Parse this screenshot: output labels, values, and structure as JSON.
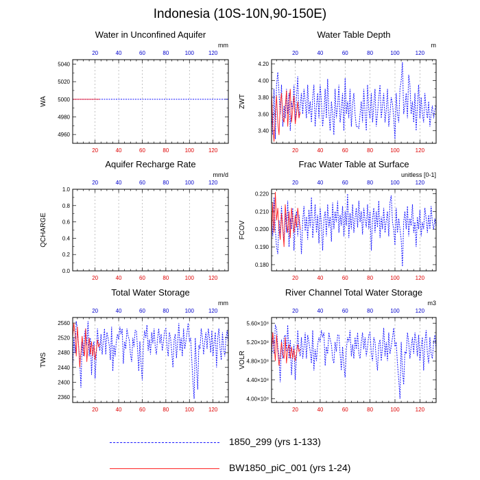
{
  "figure": {
    "title": "Indonesia (10S-10N,90-150E)",
    "colors": {
      "series_1850_299": "#1010ff",
      "series_BW1850": "#ff2020",
      "top_ticks": "#0000cc",
      "bottom_ticks": "#dd0000"
    },
    "legend": [
      {
        "label": "1850_299 (yrs 1-133)",
        "style": "dashed",
        "color": "#1010ff"
      },
      {
        "label": "BW1850_piC_001 (yrs 1-24)",
        "style": "solid",
        "color": "#ff2020"
      }
    ]
  },
  "chart_data": [
    {
      "type": "line",
      "title": "Water in Unconfined Aquifer",
      "units": "mm",
      "ylabel": "WA",
      "xlim": [
        1,
        133
      ],
      "ylim": [
        4950,
        5045
      ],
      "yticks": [
        4960,
        4980,
        5000,
        5020,
        5040
      ],
      "ytick_labels": [
        "4960",
        "4980",
        "5000",
        "5020",
        "5040"
      ],
      "xticks": [
        20,
        40,
        60,
        80,
        100,
        120
      ],
      "xtick_labels": [
        "20",
        "40",
        "60",
        "80",
        "100",
        "120"
      ],
      "series": [
        {
          "name": "1850_299",
          "x_start": 1,
          "values": [
            5000,
            5000
          ],
          "x_end": 133
        },
        {
          "name": "BW1850_piC_001",
          "x_start": 1,
          "values": [
            5000,
            5000
          ],
          "x_end": 24
        }
      ]
    },
    {
      "type": "line",
      "title": "Water Table Depth",
      "units": "m",
      "ylabel": "ZWT",
      "xlim": [
        1,
        133
      ],
      "ylim": [
        3.25,
        4.25
      ],
      "yticks": [
        3.4,
        3.6,
        3.8,
        4.0,
        4.2
      ],
      "ytick_labels": [
        "3.40",
        "3.60",
        "3.80",
        "4.00",
        "4.20"
      ],
      "xticks": [
        20,
        40,
        60,
        80,
        100,
        120
      ],
      "xtick_labels": [
        "20",
        "40",
        "60",
        "80",
        "100",
        "120"
      ],
      "series": [
        {
          "name": "1850_299",
          "x_start": 1,
          "values": [
            3.72,
            3.35,
            3.9,
            3.3,
            3.95,
            4.1,
            3.85,
            3.6,
            3.95,
            3.45,
            3.7,
            3.55,
            3.9,
            3.6,
            3.85,
            3.4,
            3.75,
            3.65,
            3.95,
            3.5,
            3.8,
            4.05,
            3.55,
            3.7,
            3.85,
            3.6,
            3.9,
            3.75,
            3.55,
            3.95,
            3.6,
            3.75,
            3.5,
            3.8,
            3.95,
            3.45,
            3.7,
            3.85,
            3.55,
            3.95,
            3.75,
            3.45,
            3.62,
            3.9,
            3.55,
            4.02,
            3.62,
            3.4,
            3.75,
            3.6,
            3.35,
            3.9,
            3.55,
            3.7,
            3.95,
            3.5,
            3.65,
            3.85,
            3.4,
            4.03,
            3.6,
            3.75,
            3.55,
            3.9,
            3.45,
            3.72,
            3.85,
            3.6,
            3.45,
            3.45,
            3.43,
            3.6,
            3.75,
            3.5,
            3.9,
            3.6,
            3.4,
            3.95,
            3.65,
            3.55,
            3.85,
            3.5,
            3.7,
            3.9,
            3.45,
            3.6,
            3.8,
            3.95,
            3.55,
            3.7,
            3.85,
            3.5,
            3.65,
            3.9,
            3.45,
            3.6,
            3.8,
            3.72,
            3.55,
            3.3,
            3.85,
            3.6,
            3.5,
            3.9,
            4.0,
            4.22,
            3.6,
            3.7,
            3.85,
            3.55,
            4.07,
            3.95,
            3.6,
            3.75,
            3.5,
            3.85,
            3.4,
            3.7,
            3.95,
            3.55,
            3.8,
            3.6,
            3.5,
            3.85,
            3.65,
            3.55,
            3.75,
            3.45,
            3.6,
            3.7,
            3.55,
            3.65,
            3.7
          ]
        },
        {
          "name": "BW1850_piC_001",
          "x_start": 1,
          "values": [
            3.88,
            3.45,
            3.27,
            3.6,
            3.82,
            3.5,
            3.35,
            3.72,
            3.85,
            3.55,
            3.5,
            3.7,
            3.88,
            3.45,
            3.72,
            3.9,
            3.5,
            3.65,
            3.82,
            3.48,
            3.6,
            3.75,
            3.55,
            3.62
          ]
        }
      ]
    },
    {
      "type": "line",
      "title": "Aquifer Recharge Rate",
      "units": "mm/d",
      "ylabel": "QCHARGE",
      "xlim": [
        1,
        133
      ],
      "ylim": [
        0.0,
        1.0
      ],
      "yticks": [
        0.0,
        0.2,
        0.4,
        0.6,
        0.8,
        1.0
      ],
      "ytick_labels": [
        "0.0",
        "0.2",
        "0.4",
        "0.6",
        "0.8",
        "1.0"
      ],
      "xticks": [
        20,
        40,
        60,
        80,
        100,
        120
      ],
      "xtick_labels": [
        "20",
        "40",
        "60",
        "80",
        "100",
        "120"
      ],
      "series": []
    },
    {
      "type": "line",
      "title": "Frac Water Table at Surface",
      "units": "unitless [0-1]",
      "ylabel": "FCOV",
      "xlim": [
        1,
        133
      ],
      "ylim": [
        0.1765,
        0.2225
      ],
      "yticks": [
        0.18,
        0.19,
        0.2,
        0.21,
        0.22
      ],
      "ytick_labels": [
        "0.180",
        "0.190",
        "0.200",
        "0.210",
        "0.220"
      ],
      "xticks": [
        20,
        40,
        60,
        80,
        100,
        120
      ],
      "xtick_labels": [
        "20",
        "40",
        "60",
        "80",
        "100",
        "120"
      ],
      "series": [
        {
          "name": "1850_299",
          "x_start": 1,
          "values": [
            0.206,
            0.196,
            0.218,
            0.2,
            0.19,
            0.186,
            0.205,
            0.197,
            0.213,
            0.201,
            0.193,
            0.209,
            0.198,
            0.216,
            0.19,
            0.206,
            0.2,
            0.212,
            0.188,
            0.203,
            0.21,
            0.196,
            0.208,
            0.2,
            0.186,
            0.205,
            0.213,
            0.199,
            0.207,
            0.194,
            0.211,
            0.201,
            0.218,
            0.195,
            0.204,
            0.214,
            0.198,
            0.208,
            0.192,
            0.212,
            0.203,
            0.188,
            0.206,
            0.21,
            0.196,
            0.214,
            0.201,
            0.207,
            0.193,
            0.215,
            0.2,
            0.21,
            0.204,
            0.216,
            0.198,
            0.208,
            0.202,
            0.213,
            0.196,
            0.21,
            0.202,
            0.22,
            0.195,
            0.209,
            0.2,
            0.214,
            0.198,
            0.206,
            0.212,
            0.201,
            0.216,
            0.204,
            0.21,
            0.197,
            0.212,
            0.205,
            0.201,
            0.214,
            0.2,
            0.21,
            0.188,
            0.206,
            0.212,
            0.198,
            0.21,
            0.201,
            0.216,
            0.195,
            0.207,
            0.2,
            0.212,
            0.198,
            0.205,
            0.21,
            0.196,
            0.215,
            0.219,
            0.204,
            0.2,
            0.191,
            0.212,
            0.198,
            0.206,
            0.2,
            0.194,
            0.179,
            0.204,
            0.21,
            0.2,
            0.213,
            0.196,
            0.206,
            0.202,
            0.214,
            0.198,
            0.204,
            0.19,
            0.207,
            0.2,
            0.211,
            0.196,
            0.204,
            0.2,
            0.212,
            0.206,
            0.198,
            0.208,
            0.2,
            0.213,
            0.204,
            0.2,
            0.206,
            0.201
          ]
        },
        {
          "name": "BW1850_piC_001",
          "x_start": 1,
          "values": [
            0.195,
            0.215,
            0.198,
            0.221,
            0.205,
            0.212,
            0.2,
            0.194,
            0.209,
            0.2,
            0.19,
            0.214,
            0.204,
            0.198,
            0.21,
            0.195,
            0.212,
            0.205,
            0.198,
            0.208,
            0.201,
            0.212,
            0.205,
            0.2
          ]
        }
      ]
    },
    {
      "type": "line",
      "title": "Total Water Storage",
      "units": "mm",
      "ylabel": "TWS",
      "xlim": [
        1,
        133
      ],
      "ylim": [
        2345,
        2575
      ],
      "yticks": [
        2360,
        2400,
        2440,
        2480,
        2520,
        2560
      ],
      "ytick_labels": [
        "2360",
        "2400",
        "2440",
        "2480",
        "2520",
        "2560"
      ],
      "xticks": [
        20,
        40,
        60,
        80,
        100,
        120
      ],
      "xtick_labels": [
        "20",
        "40",
        "60",
        "80",
        "100",
        "120"
      ],
      "series": [
        {
          "name": "1850_299",
          "x_start": 1,
          "values": [
            2440,
            2520,
            2480,
            2565,
            2545,
            2500,
            2460,
            2385,
            2510,
            2470,
            2530,
            2545,
            2500,
            2565,
            2470,
            2520,
            2420,
            2495,
            2510,
            2410,
            2470,
            2545,
            2505,
            2485,
            2530,
            2475,
            2510,
            2545,
            2475,
            2535,
            2520,
            2500,
            2460,
            2550,
            2430,
            2500,
            2470,
            2510,
            2530,
            2515,
            2550,
            2530,
            2545,
            2450,
            2510,
            2490,
            2545,
            2525,
            2515,
            2475,
            2455,
            2520,
            2495,
            2540,
            2540,
            2490,
            2430,
            2510,
            2450,
            2405,
            2505,
            2540,
            2520,
            2555,
            2485,
            2515,
            2475,
            2535,
            2505,
            2545,
            2495,
            2475,
            2520,
            2545,
            2505,
            2530,
            2485,
            2510,
            2540,
            2545,
            2495,
            2470,
            2535,
            2520,
            2480,
            2440,
            2515,
            2530,
            2465,
            2510,
            2560,
            2485,
            2520,
            2470,
            2545,
            2490,
            2510,
            2535,
            2560,
            2510,
            2520,
            2460,
            2400,
            2355,
            2520,
            2440,
            2380,
            2500,
            2490,
            2545,
            2520,
            2475,
            2510,
            2535,
            2490,
            2545,
            2520,
            2480,
            2540,
            2470,
            2510,
            2535,
            2440,
            2520,
            2545,
            2490,
            2460,
            2535,
            2490,
            2470,
            2520,
            2540,
            2505
          ]
        },
        {
          "name": "BW1850_piC_001",
          "x_start": 1,
          "values": [
            2520,
            2560,
            2530,
            2470,
            2550,
            2500,
            2440,
            2480,
            2525,
            2490,
            2470,
            2545,
            2455,
            2500,
            2520,
            2475,
            2510,
            2470,
            2500,
            2460,
            2485,
            2515,
            2495,
            2505
          ]
        }
      ]
    },
    {
      "type": "line",
      "title": "River Channel Total Water Storage",
      "units": "m3",
      "ylabel": "VOLR",
      "xlim": [
        1,
        133
      ],
      "ylim": [
        392000000.0,
        572000000.0
      ],
      "yticks": [
        400000000.0,
        440000000.0,
        480000000.0,
        520000000.0,
        560000000.0
      ],
      "ytick_labels": [
        "4.00×10⁸",
        "4.40×10⁸",
        "4.80×10⁸",
        "5.20×10⁸",
        "5.60×10⁸"
      ],
      "xticks": [
        20,
        40,
        60,
        80,
        100,
        120
      ],
      "xtick_labels": [
        "20",
        "40",
        "60",
        "80",
        "100",
        "120"
      ],
      "series": [
        {
          "name": "1850_299",
          "x_start": 1,
          "values": [
            480000000.0,
            540000000.0,
            495000000.0,
            555000000.0,
            550000000.0,
            510000000.0,
            490000000.0,
            435000000.0,
            525000000.0,
            485000000.0,
            530000000.0,
            535000000.0,
            500000000.0,
            556000000.0,
            485000000.0,
            525000000.0,
            450000000.0,
            495000000.0,
            515000000.0,
            440000000.0,
            490000000.0,
            545000000.0,
            505000000.0,
            490000000.0,
            530000000.0,
            485000000.0,
            510000000.0,
            540000000.0,
            485000000.0,
            535000000.0,
            520000000.0,
            500000000.0,
            475000000.0,
            545000000.0,
            460000000.0,
            505000000.0,
            480000000.0,
            515000000.0,
            530000000.0,
            520000000.0,
            545000000.0,
            530000000.0,
            540000000.0,
            470000000.0,
            510000000.0,
            495000000.0,
            540000000.0,
            525000000.0,
            515000000.0,
            485000000.0,
            475000000.0,
            520000000.0,
            500000000.0,
            535000000.0,
            535000000.0,
            495000000.0,
            460000000.0,
            510000000.0,
            470000000.0,
            445000000.0,
            505000000.0,
            530000000.0,
            520000000.0,
            545000000.0,
            490000000.0,
            515000000.0,
            485000000.0,
            530000000.0,
            505000000.0,
            540000000.0,
            495000000.0,
            485000000.0,
            520000000.0,
            540000000.0,
            505000000.0,
            530000000.0,
            490000000.0,
            510000000.0,
            535000000.0,
            540000000.0,
            495000000.0,
            480000000.0,
            530000000.0,
            520000000.0,
            485000000.0,
            460000000.0,
            515000000.0,
            525000000.0,
            480000000.0,
            510000000.0,
            550000000.0,
            490000000.0,
            520000000.0,
            480000000.0,
            540000000.0,
            495000000.0,
            510000000.0,
            530000000.0,
            550000000.0,
            510000000.0,
            520000000.0,
            475000000.0,
            440000000.0,
            400000000.0,
            520000000.0,
            460000000.0,
            430000000.0,
            500000000.0,
            495000000.0,
            540000000.0,
            520000000.0,
            485000000.0,
            510000000.0,
            530000000.0,
            495000000.0,
            540000000.0,
            520000000.0,
            490000000.0,
            535000000.0,
            480000000.0,
            510000000.0,
            530000000.0,
            460000000.0,
            520000000.0,
            545000000.0,
            495000000.0,
            475000000.0,
            530000000.0,
            495000000.0,
            485000000.0,
            520000000.0,
            535000000.0,
            505000000.0
          ]
        },
        {
          "name": "BW1850_piC_001",
          "x_start": 1,
          "values": [
            500000000.0,
            540000000.0,
            515000000.0,
            480000000.0,
            535000000.0,
            500000000.0,
            470000000.0,
            490000000.0,
            520000000.0,
            495000000.0,
            485000000.0,
            530000000.0,
            475000000.0,
            505000000.0,
            515000000.0,
            485000000.0,
            510000000.0,
            485000000.0,
            505000000.0,
            480000000.0,
            495000000.0,
            515000000.0,
            500000000.0,
            505000000.0
          ]
        }
      ]
    }
  ]
}
